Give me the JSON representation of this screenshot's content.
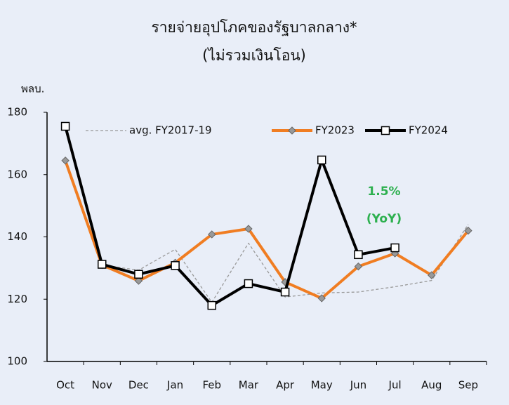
{
  "chart_data": {
    "type": "line",
    "title": [
      "รายจ่ายอุปโภคของรัฐบาลกลาง*",
      "(ไม่รวมเงินโอน)"
    ],
    "y_label": "พลบ.",
    "categories": [
      "Oct",
      "Nov",
      "Dec",
      "Jan",
      "Feb",
      "Mar",
      "Apr",
      "May",
      "Jun",
      "Jul",
      "Aug",
      "Sep"
    ],
    "series": [
      {
        "name": "avg. FY2017-19",
        "color": "#999999",
        "style": "dashed",
        "values": [
          165,
          131,
          129.3,
          136,
          119,
          138,
          120.7,
          122,
          122.3,
          124,
          126,
          144
        ]
      },
      {
        "name": "FY2023",
        "color": "#f07d22",
        "marker": "diamond",
        "values": [
          164.5,
          131,
          125.9,
          131.7,
          140.8,
          142.6,
          125.5,
          120.3,
          130.5,
          134.7,
          127.7,
          142
        ]
      },
      {
        "name": "FY2024",
        "color": "#000000",
        "marker": "square",
        "values": [
          175.5,
          131.2,
          128,
          130.8,
          118,
          125,
          122.3,
          164.7,
          134.3,
          136.5,
          null,
          null
        ]
      }
    ],
    "ylim": [
      100,
      180
    ],
    "yticks": [
      100,
      120,
      140,
      160,
      180
    ],
    "annotations": [
      {
        "text": "1.5%",
        "color": "#2db04f"
      },
      {
        "text": "(YoY)",
        "color": "#2db04f"
      }
    ]
  }
}
